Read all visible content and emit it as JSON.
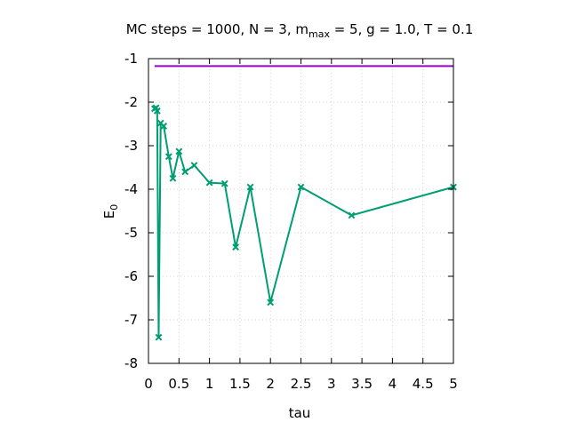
{
  "chart_data": {
    "type": "line",
    "title": {
      "prefix": "MC steps = 1000, N = 3, m",
      "subscript": "max",
      "suffix": " = 5, g = 1.0, T = 0.1"
    },
    "xlabel": "tau",
    "ylabel": {
      "main": "E",
      "subscript": "0"
    },
    "xlim": [
      0,
      5
    ],
    "ylim": [
      -8,
      -1
    ],
    "x_ticks": [
      0,
      0.5,
      1,
      1.5,
      2,
      2.5,
      3,
      3.5,
      4,
      4.5,
      5
    ],
    "x_tick_labels": [
      "0",
      "0.5",
      "1",
      "1.5",
      "2",
      "2.5",
      "3",
      "3.5",
      "4",
      "4.5",
      "5"
    ],
    "y_ticks": [
      -8,
      -7,
      -6,
      -5,
      -4,
      -3,
      -2,
      -1
    ],
    "y_tick_labels": [
      "-8",
      "-7",
      "-6",
      "-5",
      "-4",
      "-3",
      "-2",
      "-1"
    ],
    "grid": true,
    "series": [
      {
        "color": "#009e73",
        "marker": "x",
        "x": [
          0.1,
          0.125,
          0.143,
          0.167,
          0.2,
          0.25,
          0.333,
          0.4,
          0.5,
          0.6,
          0.75,
          1.0,
          1.25,
          1.43,
          1.67,
          2.0,
          2.5,
          3.33,
          5.0
        ],
        "y": [
          -2.15,
          -2.13,
          -2.2,
          -7.4,
          -2.48,
          -2.55,
          -3.25,
          -3.75,
          -3.13,
          -3.6,
          -3.45,
          -3.85,
          -3.87,
          -5.33,
          -3.95,
          -6.6,
          -3.95,
          -4.6,
          -3.95
        ]
      },
      {
        "color": "#9400d3",
        "marker": "none",
        "x": [
          0.1,
          5.0
        ],
        "y": [
          -1.17,
          -1.17
        ]
      }
    ]
  }
}
